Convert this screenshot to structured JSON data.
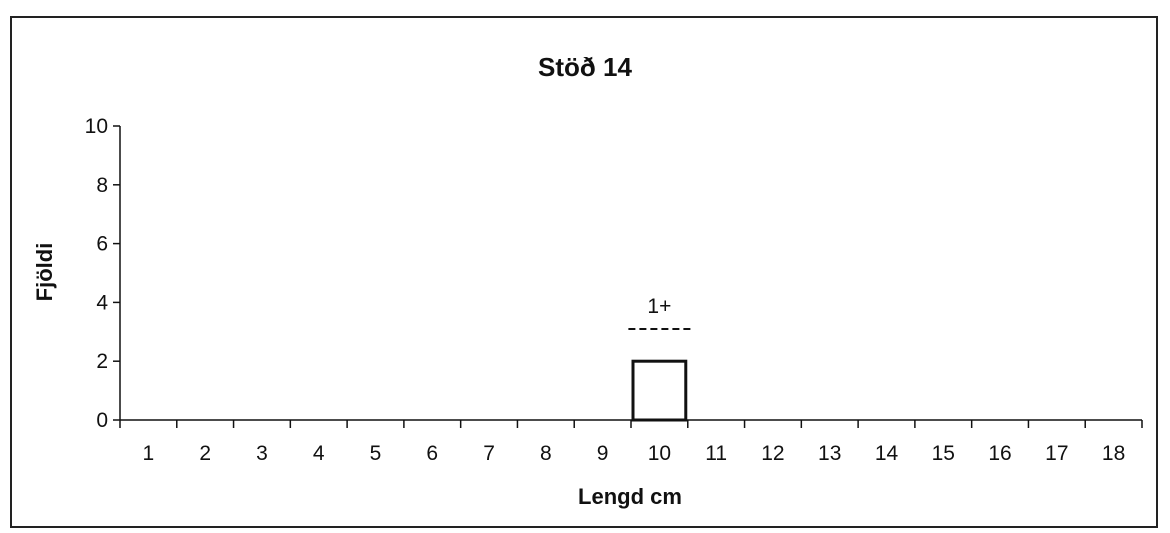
{
  "chart_data": {
    "type": "bar",
    "title": "Stöð 14",
    "xlabel": "Lengd cm",
    "ylabel": "Fjöldi",
    "categories": [
      "1",
      "2",
      "3",
      "4",
      "5",
      "6",
      "7",
      "8",
      "9",
      "10",
      "11",
      "12",
      "13",
      "14",
      "15",
      "16",
      "17",
      "18"
    ],
    "values": [
      0,
      0,
      0,
      0,
      0,
      0,
      0,
      0,
      0,
      2,
      0,
      0,
      0,
      0,
      0,
      0,
      0,
      0
    ],
    "ylim": [
      0,
      10
    ],
    "yticks": [
      "0",
      "2",
      "4",
      "6",
      "8",
      "10"
    ],
    "grid": false,
    "annotations": [
      {
        "text": "1+",
        "category": "10"
      }
    ]
  }
}
